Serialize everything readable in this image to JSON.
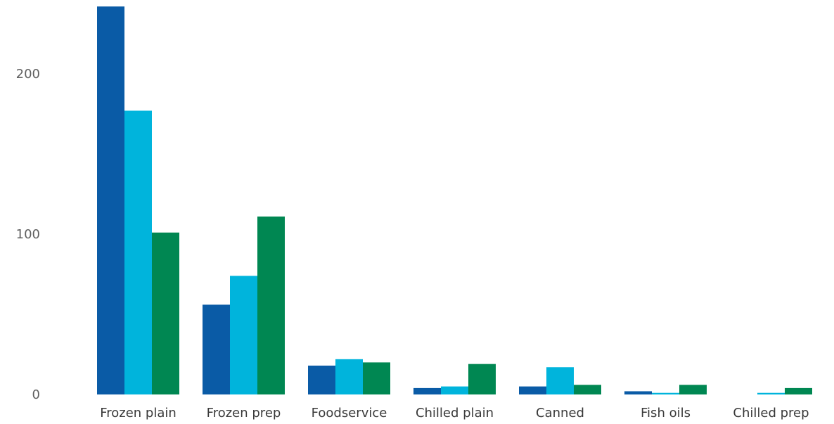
{
  "chart_data": {
    "type": "bar",
    "categories": [
      "Frozen plain",
      "Frozen prep",
      "Foodservice",
      "Chilled plain",
      "Canned",
      "Fish oils",
      "Chilled prep"
    ],
    "series": [
      {
        "values": [
          242,
          56,
          18,
          4,
          5,
          2,
          0
        ],
        "color": "#0a5ba6"
      },
      {
        "values": [
          177,
          74,
          22,
          5,
          17,
          1,
          1
        ],
        "color": "#00b4dc"
      },
      {
        "values": [
          101,
          111,
          20,
          19,
          6,
          6,
          4
        ],
        "color": "#008752"
      }
    ],
    "y_ticks": [
      0,
      100,
      200
    ],
    "ylim": [
      0,
      242
    ],
    "grid": false,
    "title": "",
    "xlabel": "",
    "ylabel": ""
  }
}
